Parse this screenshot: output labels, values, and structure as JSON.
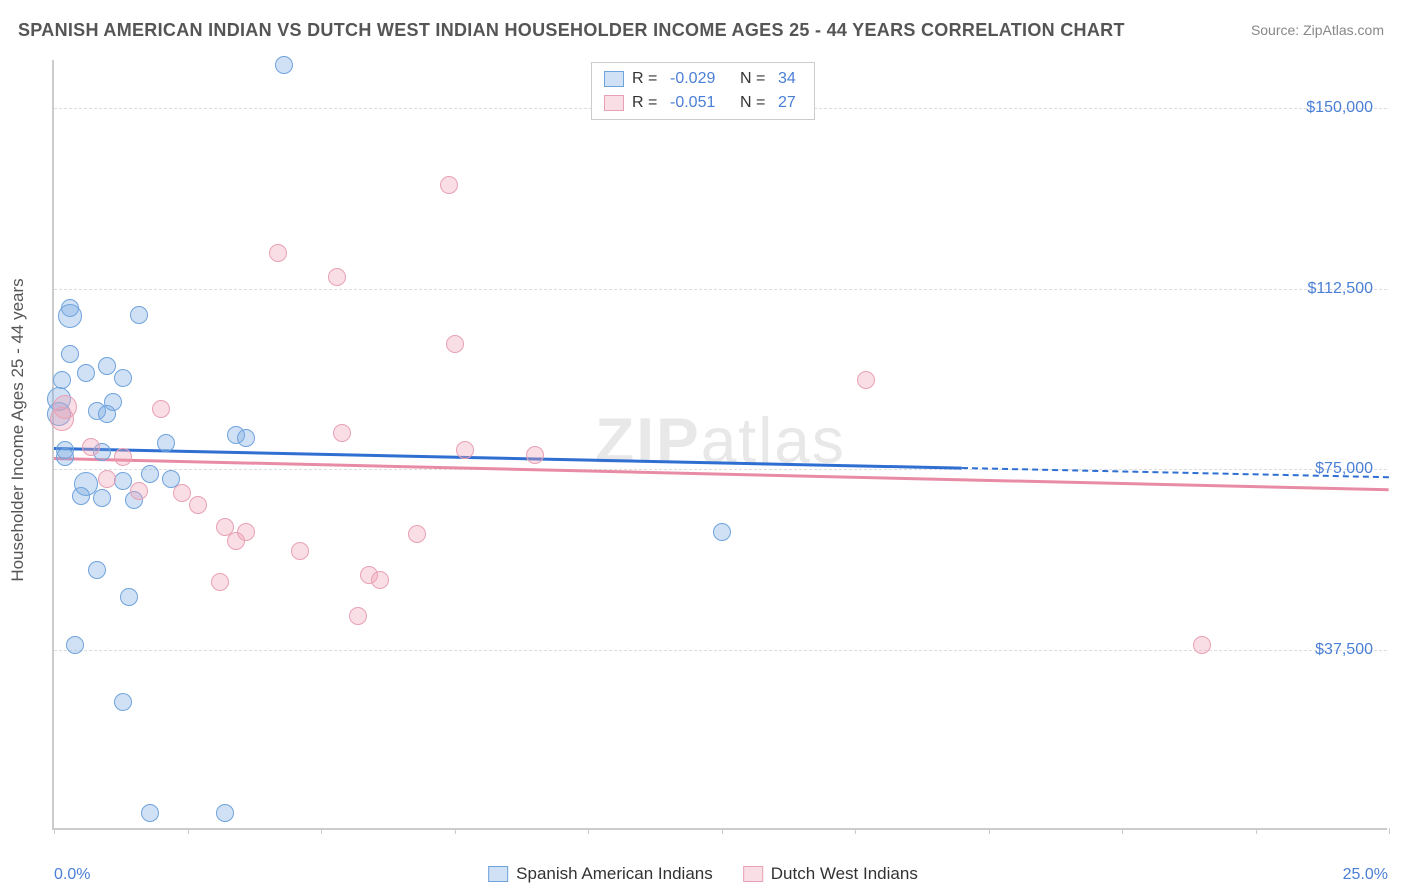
{
  "title": "SPANISH AMERICAN INDIAN VS DUTCH WEST INDIAN HOUSEHOLDER INCOME AGES 25 - 44 YEARS CORRELATION CHART",
  "source_label": "Source:",
  "source_value": "ZipAtlas.com",
  "watermark_bold": "ZIP",
  "watermark_rest": "atlas",
  "y_axis_title": "Householder Income Ages 25 - 44 years",
  "colors": {
    "series_a_fill": "rgba(120,170,225,0.35)",
    "series_a_stroke": "#6fa3dd",
    "series_b_fill": "rgba(240,160,180,0.35)",
    "series_b_stroke": "#e8a1b4",
    "trend_a": "#2e6fd1",
    "trend_b": "#e88ba5",
    "axis_text": "#4a7fd6",
    "grid": "#dddddd",
    "title_text": "#555555"
  },
  "chart": {
    "type": "scatter-correlation",
    "xlim": [
      0,
      25
    ],
    "ylim": [
      0,
      160000
    ],
    "x_unit": "%",
    "y_unit": "$",
    "yticks": [
      37500,
      75000,
      112500,
      150000
    ],
    "ytick_labels": [
      "$37,500",
      "$75,000",
      "$112,500",
      "$150,000"
    ],
    "xticks_minor": [
      0,
      2.5,
      5,
      7.5,
      10,
      12.5,
      15,
      17.5,
      20,
      22.5,
      25
    ],
    "x_end_labels": [
      "0.0%",
      "25.0%"
    ],
    "marker_radius": 9,
    "marker_radius_large": 12,
    "line_width": 2.5
  },
  "series": [
    {
      "key": "a",
      "name": "Spanish American Indians",
      "R": "-0.029",
      "N": "34",
      "trend": {
        "x1": 0,
        "y1": 79500,
        "x2": 25,
        "y2": 73500,
        "solid_until_x": 17
      },
      "points": [
        {
          "x": 0.3,
          "y": 108500
        },
        {
          "x": 0.3,
          "y": 106800,
          "r": 12
        },
        {
          "x": 0.3,
          "y": 99000
        },
        {
          "x": 0.15,
          "y": 93500
        },
        {
          "x": 0.1,
          "y": 89500,
          "r": 12
        },
        {
          "x": 0.1,
          "y": 86500,
          "r": 12
        },
        {
          "x": 0.6,
          "y": 95000
        },
        {
          "x": 1.0,
          "y": 96500
        },
        {
          "x": 1.3,
          "y": 94000
        },
        {
          "x": 1.6,
          "y": 107000
        },
        {
          "x": 0.8,
          "y": 87000
        },
        {
          "x": 1.0,
          "y": 86500
        },
        {
          "x": 0.2,
          "y": 79000
        },
        {
          "x": 0.6,
          "y": 72000,
          "r": 12
        },
        {
          "x": 0.5,
          "y": 69500
        },
        {
          "x": 0.9,
          "y": 69000
        },
        {
          "x": 1.3,
          "y": 72500
        },
        {
          "x": 1.5,
          "y": 68500
        },
        {
          "x": 1.8,
          "y": 74000
        },
        {
          "x": 2.2,
          "y": 73000
        },
        {
          "x": 2.1,
          "y": 80500
        },
        {
          "x": 3.4,
          "y": 82000
        },
        {
          "x": 3.6,
          "y": 81500
        },
        {
          "x": 4.3,
          "y": 159000
        },
        {
          "x": 0.8,
          "y": 54000
        },
        {
          "x": 1.4,
          "y": 48500
        },
        {
          "x": 0.4,
          "y": 38500
        },
        {
          "x": 1.3,
          "y": 26500
        },
        {
          "x": 1.8,
          "y": 3500
        },
        {
          "x": 3.2,
          "y": 3500
        },
        {
          "x": 12.5,
          "y": 62000
        },
        {
          "x": 0.2,
          "y": 77500
        },
        {
          "x": 0.9,
          "y": 78500
        },
        {
          "x": 1.1,
          "y": 89000
        }
      ]
    },
    {
      "key": "b",
      "name": "Dutch West Indians",
      "R": "-0.051",
      "N": "27",
      "trend": {
        "x1": 0,
        "y1": 77500,
        "x2": 25,
        "y2": 71000,
        "solid_until_x": 25
      },
      "points": [
        {
          "x": 0.2,
          "y": 88000,
          "r": 12
        },
        {
          "x": 0.15,
          "y": 85500,
          "r": 12
        },
        {
          "x": 1.0,
          "y": 73000
        },
        {
          "x": 1.3,
          "y": 77500
        },
        {
          "x": 1.6,
          "y": 70500
        },
        {
          "x": 2.0,
          "y": 87500
        },
        {
          "x": 2.4,
          "y": 70000
        },
        {
          "x": 2.7,
          "y": 67500
        },
        {
          "x": 3.1,
          "y": 51500
        },
        {
          "x": 3.2,
          "y": 63000
        },
        {
          "x": 3.4,
          "y": 60000
        },
        {
          "x": 3.6,
          "y": 62000
        },
        {
          "x": 4.2,
          "y": 120000
        },
        {
          "x": 4.6,
          "y": 58000
        },
        {
          "x": 5.3,
          "y": 115000
        },
        {
          "x": 5.4,
          "y": 82500
        },
        {
          "x": 5.7,
          "y": 44500
        },
        {
          "x": 5.9,
          "y": 53000
        },
        {
          "x": 6.1,
          "y": 52000
        },
        {
          "x": 6.8,
          "y": 61500
        },
        {
          "x": 7.4,
          "y": 134000
        },
        {
          "x": 7.5,
          "y": 101000
        },
        {
          "x": 7.7,
          "y": 79000
        },
        {
          "x": 9.0,
          "y": 78000
        },
        {
          "x": 15.2,
          "y": 93500
        },
        {
          "x": 21.5,
          "y": 38500
        },
        {
          "x": 0.7,
          "y": 79500
        }
      ]
    }
  ],
  "legend_top_labels": {
    "R": "R =",
    "N": "N ="
  },
  "legend_bottom": [
    {
      "series": "a"
    },
    {
      "series": "b"
    }
  ]
}
